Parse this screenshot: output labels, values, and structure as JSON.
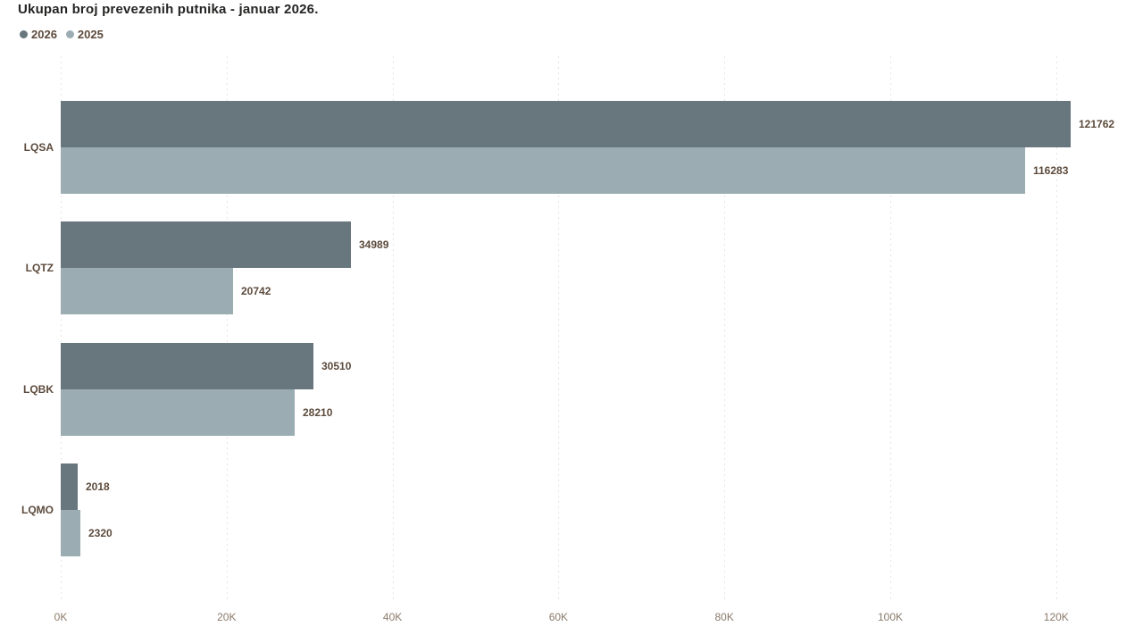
{
  "title": "Ukupan broj prevezenih putnika - januar 2026.",
  "legend": {
    "items": [
      {
        "label": "2026",
        "color": "#68767e"
      },
      {
        "label": "2025",
        "color": "#9badb3"
      }
    ]
  },
  "colors": {
    "series_2026": "#68767e",
    "series_2025": "#9badb3",
    "label_text": "#5c4a3c",
    "tick_text": "#8a7a6a",
    "title_text": "#252423",
    "gridline": "#e4e4e4",
    "background": "#ffffff"
  },
  "chart_data": {
    "type": "bar",
    "orientation": "horizontal",
    "title": "Ukupan broj prevezenih putnika - januar 2026.",
    "categories": [
      "LQSA",
      "LQTZ",
      "LQBK",
      "LQMO"
    ],
    "series": [
      {
        "name": "2026",
        "color": "#68767e",
        "values": [
          121762,
          34989,
          30510,
          2018
        ]
      },
      {
        "name": "2025",
        "color": "#9badb3",
        "values": [
          116283,
          20742,
          28210,
          2320
        ]
      }
    ],
    "data_labels_visible": true,
    "xlabel": "",
    "ylabel": "",
    "x_ticks": [
      "0K",
      "20K",
      "40K",
      "60K",
      "80K",
      "100K",
      "120K"
    ],
    "x_tick_values": [
      0,
      20000,
      40000,
      60000,
      80000,
      100000,
      120000
    ],
    "xlim": [
      0,
      131000
    ],
    "grid": "vertical-dotted",
    "legend_position": "top-left"
  }
}
